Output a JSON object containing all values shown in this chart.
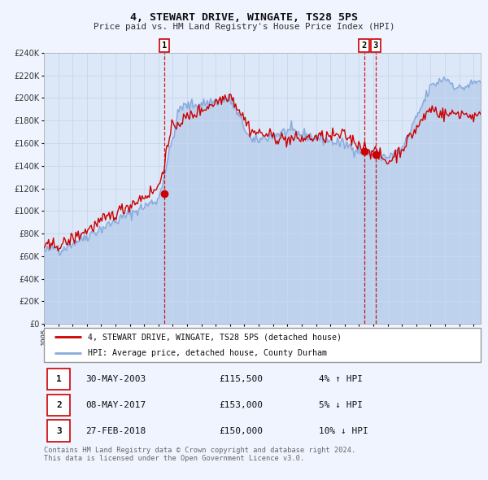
{
  "title": "4, STEWART DRIVE, WINGATE, TS28 5PS",
  "subtitle": "Price paid vs. HM Land Registry's House Price Index (HPI)",
  "bg_color": "#f0f4ff",
  "plot_bg_color": "#dce8f8",
  "grid_color": "#c8d8ee",
  "red_line_color": "#cc0000",
  "blue_line_color": "#88aadd",
  "legend_label_red": "4, STEWART DRIVE, WINGATE, TS28 5PS (detached house)",
  "legend_label_blue": "HPI: Average price, detached house, County Durham",
  "trans_years": [
    2003.41,
    2017.35,
    2018.16
  ],
  "trans_prices": [
    115500,
    153000,
    150000
  ],
  "trans_labels": [
    "1",
    "2",
    "3"
  ],
  "footer": "Contains HM Land Registry data © Crown copyright and database right 2024.\nThis data is licensed under the Open Government Licence v3.0.",
  "ylim": [
    0,
    240000
  ],
  "yticks": [
    0,
    20000,
    40000,
    60000,
    80000,
    100000,
    120000,
    140000,
    160000,
    180000,
    200000,
    220000,
    240000
  ],
  "xlim_start": 1995.0,
  "xlim_end": 2025.5,
  "table_rows": [
    [
      "1",
      "30-MAY-2003",
      "£115,500",
      "4% ↑ HPI"
    ],
    [
      "2",
      "08-MAY-2017",
      "£153,000",
      "5% ↓ HPI"
    ],
    [
      "3",
      "27-FEB-2018",
      "£150,000",
      "10% ↓ HPI"
    ]
  ]
}
